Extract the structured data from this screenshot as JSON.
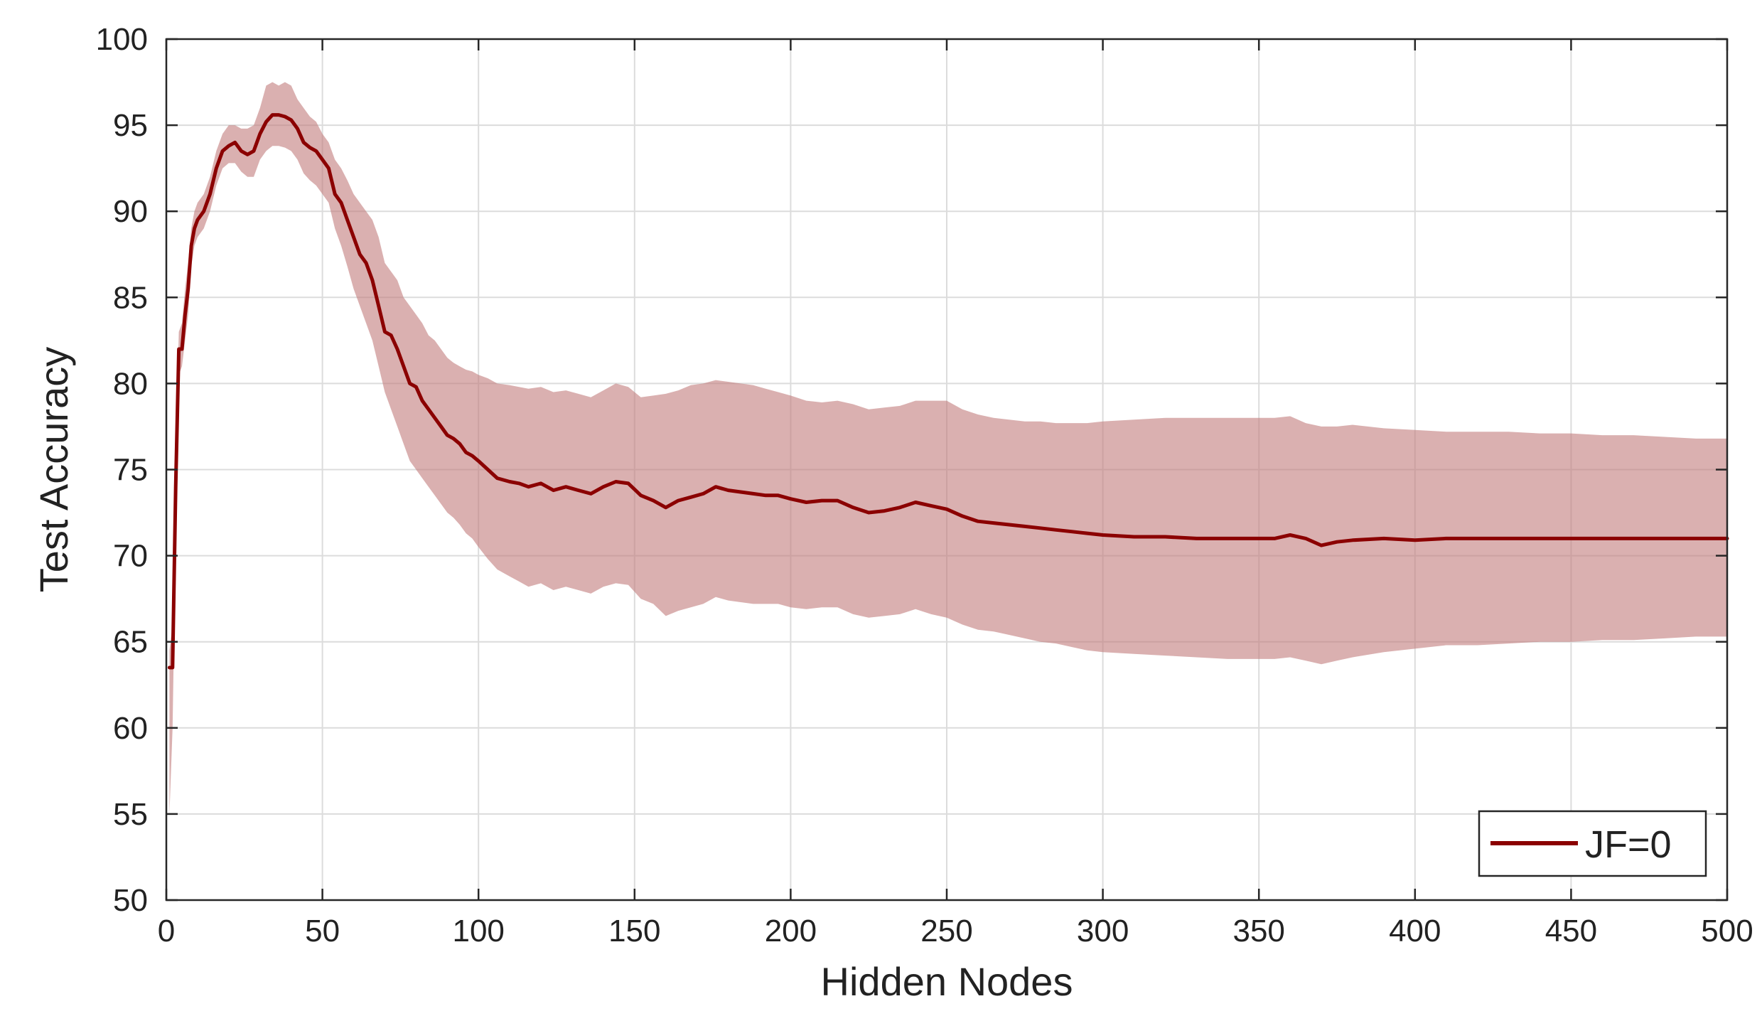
{
  "chart_data": {
    "type": "line",
    "title": "",
    "xlabel": "Hidden Nodes",
    "ylabel": "Test Accuracy",
    "xlim": [
      0,
      500
    ],
    "ylim": [
      50,
      100
    ],
    "xticks": [
      0,
      50,
      100,
      150,
      200,
      250,
      300,
      350,
      400,
      450,
      500
    ],
    "yticks": [
      50,
      55,
      60,
      65,
      70,
      75,
      80,
      85,
      90,
      95,
      100
    ],
    "grid": true,
    "legend_position": "bottom-right",
    "colors": {
      "line": "#8B0000",
      "band": "#C27C7C"
    },
    "series": [
      {
        "name": "JF=0",
        "x": [
          1,
          2,
          3,
          4,
          5,
          6,
          7,
          8,
          9,
          10,
          12,
          14,
          16,
          18,
          20,
          22,
          24,
          26,
          28,
          30,
          32,
          34,
          36,
          38,
          40,
          42,
          44,
          46,
          48,
          50,
          52,
          54,
          56,
          58,
          60,
          62,
          64,
          66,
          68,
          70,
          72,
          74,
          76,
          78,
          80,
          82,
          84,
          86,
          88,
          90,
          92,
          94,
          96,
          98,
          100,
          103,
          106,
          110,
          113,
          116,
          120,
          124,
          128,
          132,
          136,
          140,
          144,
          148,
          152,
          156,
          160,
          164,
          168,
          172,
          176,
          180,
          184,
          188,
          192,
          196,
          200,
          205,
          210,
          215,
          220,
          225,
          230,
          235,
          240,
          245,
          250,
          255,
          260,
          265,
          270,
          275,
          280,
          285,
          290,
          295,
          300,
          310,
          320,
          330,
          340,
          350,
          355,
          360,
          365,
          370,
          375,
          380,
          390,
          400,
          410,
          420,
          430,
          440,
          450,
          460,
          470,
          480,
          490,
          500
        ],
        "values": [
          63.5,
          63.5,
          74.0,
          82.0,
          82.0,
          84.0,
          85.5,
          88.0,
          89.0,
          89.5,
          90.0,
          91.0,
          92.5,
          93.5,
          93.8,
          94.0,
          93.5,
          93.3,
          93.5,
          94.5,
          95.2,
          95.6,
          95.6,
          95.5,
          95.3,
          94.8,
          94.0,
          93.7,
          93.5,
          93.0,
          92.5,
          91.0,
          90.5,
          89.5,
          88.5,
          87.5,
          87.0,
          86.0,
          84.5,
          83.0,
          82.8,
          82.0,
          81.0,
          80.0,
          79.8,
          79.0,
          78.5,
          78.0,
          77.5,
          77.0,
          76.8,
          76.5,
          76.0,
          75.8,
          75.5,
          75.0,
          74.5,
          74.3,
          74.2,
          74.0,
          74.2,
          73.8,
          74.0,
          73.8,
          73.6,
          74.0,
          74.3,
          74.2,
          73.5,
          73.2,
          72.8,
          73.2,
          73.4,
          73.6,
          74.0,
          73.8,
          73.7,
          73.6,
          73.5,
          73.5,
          73.3,
          73.1,
          73.2,
          73.2,
          72.8,
          72.5,
          72.6,
          72.8,
          73.1,
          72.9,
          72.7,
          72.3,
          72.0,
          71.9,
          71.8,
          71.7,
          71.6,
          71.5,
          71.4,
          71.3,
          71.2,
          71.1,
          71.1,
          71.0,
          71.0,
          71.0,
          71.0,
          71.2,
          71.0,
          70.6,
          70.8,
          70.9,
          71.0,
          70.9,
          71.0,
          71.0,
          71.0,
          71.0,
          71.0,
          71.0,
          71.0,
          71.0,
          71.0,
          71.0
        ],
        "band_upper": [
          64.5,
          66.0,
          76.0,
          83.0,
          83.5,
          85.5,
          87.0,
          89.0,
          90.0,
          90.5,
          91.0,
          92.0,
          93.5,
          94.5,
          95.0,
          95.0,
          94.8,
          94.8,
          95.0,
          96.0,
          97.3,
          97.5,
          97.3,
          97.5,
          97.3,
          96.5,
          96.0,
          95.5,
          95.2,
          94.5,
          94.0,
          93.0,
          92.5,
          91.8,
          91.0,
          90.5,
          90.0,
          89.5,
          88.5,
          87.0,
          86.5,
          86.0,
          85.0,
          84.5,
          84.0,
          83.5,
          82.8,
          82.5,
          82.0,
          81.5,
          81.2,
          81.0,
          80.8,
          80.7,
          80.5,
          80.3,
          80.0,
          79.9,
          79.8,
          79.7,
          79.8,
          79.5,
          79.6,
          79.4,
          79.2,
          79.6,
          80.0,
          79.8,
          79.2,
          79.3,
          79.4,
          79.6,
          79.9,
          80.0,
          80.2,
          80.1,
          80.0,
          79.9,
          79.7,
          79.5,
          79.3,
          79.0,
          78.9,
          79.0,
          78.8,
          78.5,
          78.6,
          78.7,
          79.0,
          79.0,
          79.0,
          78.5,
          78.2,
          78.0,
          77.9,
          77.8,
          77.8,
          77.7,
          77.7,
          77.7,
          77.8,
          77.9,
          78.0,
          78.0,
          78.0,
          78.0,
          78.0,
          78.1,
          77.7,
          77.5,
          77.5,
          77.6,
          77.4,
          77.3,
          77.2,
          77.2,
          77.2,
          77.1,
          77.1,
          77.0,
          77.0,
          76.9,
          76.8,
          76.8
        ],
        "band_lower": [
          55.0,
          60.0,
          71.5,
          80.5,
          81.0,
          82.5,
          84.0,
          86.8,
          88.0,
          88.5,
          89.0,
          90.0,
          91.5,
          92.5,
          92.8,
          92.8,
          92.3,
          92.0,
          92.0,
          93.0,
          93.5,
          93.8,
          93.8,
          93.7,
          93.5,
          93.0,
          92.2,
          91.8,
          91.5,
          91.0,
          90.5,
          89.0,
          88.0,
          86.8,
          85.5,
          84.5,
          83.5,
          82.5,
          81.0,
          79.5,
          78.5,
          77.5,
          76.5,
          75.5,
          75.0,
          74.5,
          74.0,
          73.5,
          73.0,
          72.5,
          72.2,
          71.8,
          71.3,
          71.0,
          70.5,
          69.8,
          69.2,
          68.8,
          68.5,
          68.2,
          68.4,
          68.0,
          68.2,
          68.0,
          67.8,
          68.2,
          68.4,
          68.3,
          67.5,
          67.2,
          66.5,
          66.8,
          67.0,
          67.2,
          67.6,
          67.4,
          67.3,
          67.2,
          67.2,
          67.2,
          67.0,
          66.9,
          67.0,
          67.0,
          66.6,
          66.4,
          66.5,
          66.6,
          66.9,
          66.6,
          66.4,
          66.0,
          65.7,
          65.6,
          65.4,
          65.2,
          65.0,
          64.9,
          64.7,
          64.5,
          64.4,
          64.3,
          64.2,
          64.1,
          64.0,
          64.0,
          64.0,
          64.1,
          63.9,
          63.7,
          63.9,
          64.1,
          64.4,
          64.6,
          64.8,
          64.8,
          64.9,
          65.0,
          65.0,
          65.1,
          65.1,
          65.2,
          65.3,
          65.3
        ]
      }
    ]
  }
}
